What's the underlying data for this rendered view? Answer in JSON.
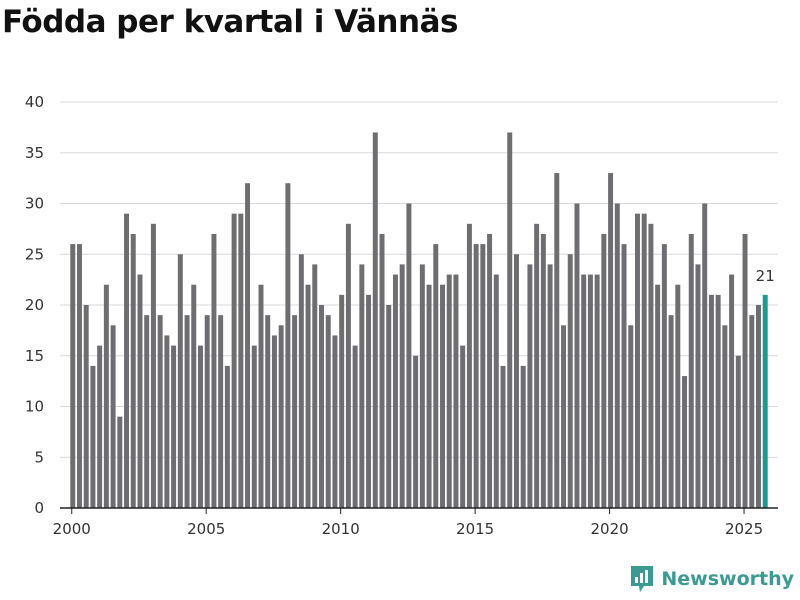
{
  "title": "Födda per kvartal i Vännäs",
  "brand": {
    "name": "Newsworthy",
    "icon": "newsworthy-logo-icon",
    "color": "#3c9a93"
  },
  "colors": {
    "bar": "#6e6d72",
    "highlight": "#1a9a90",
    "grid": "#d9d9d9",
    "axis": "#222222"
  },
  "chart_data": {
    "type": "bar",
    "title": "Födda per kvartal i Vännäs",
    "xlabel": "",
    "ylabel": "",
    "ylim": [
      0,
      40
    ],
    "yticks": [
      0,
      5,
      10,
      15,
      20,
      25,
      30,
      35,
      40
    ],
    "xlim": [
      1999.6,
      2026.3
    ],
    "xticks": [
      2000,
      2005,
      2010,
      2015,
      2020,
      2025
    ],
    "grid": true,
    "start_year": 2000,
    "series": [
      {
        "name": "Födda per kvartal",
        "values": [
          26,
          26,
          20,
          14,
          16,
          22,
          18,
          9,
          29,
          27,
          23,
          19,
          28,
          19,
          17,
          16,
          25,
          19,
          22,
          16,
          19,
          27,
          19,
          14,
          29,
          29,
          32,
          16,
          22,
          19,
          17,
          18,
          32,
          19,
          25,
          22,
          24,
          20,
          19,
          17,
          21,
          28,
          16,
          24,
          21,
          37,
          27,
          20,
          23,
          24,
          30,
          15,
          24,
          22,
          26,
          22,
          23,
          23,
          16,
          28,
          26,
          26,
          27,
          23,
          14,
          37,
          25,
          14,
          24,
          28,
          27,
          24,
          33,
          18,
          25,
          30,
          23,
          23,
          23,
          27,
          33,
          30,
          26,
          18,
          29,
          29,
          28,
          22,
          26,
          19,
          22,
          13,
          27,
          24,
          30,
          21,
          21,
          18,
          23,
          15,
          27,
          19,
          20,
          21
        ]
      }
    ],
    "highlight_last": true,
    "annotation": {
      "index": 103,
      "label": "21"
    }
  }
}
